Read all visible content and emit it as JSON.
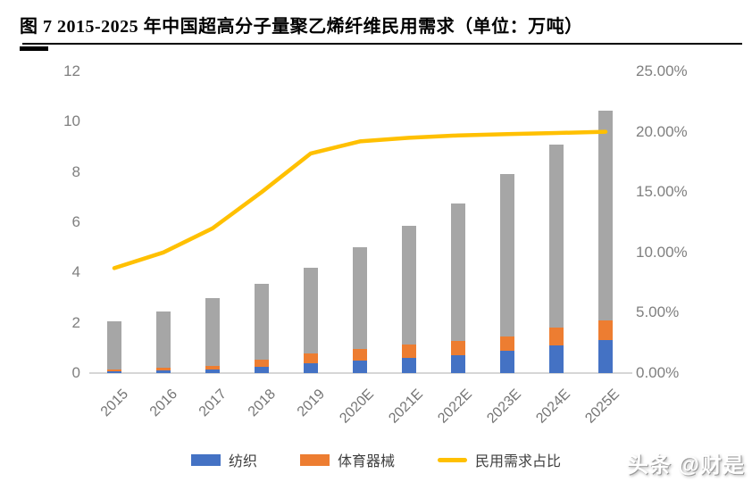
{
  "figure": {
    "title": "图 7 2015-2025 年中国超高分子量聚乙烯纤维民用需求（单位：万吨）",
    "watermark": "头条 @财是"
  },
  "colors": {
    "textile_blue": "#4472C4",
    "sports_orange": "#ED7D31",
    "other_gray": "#A6A6A6",
    "demand_line_yellow": "#FFC000",
    "axis_text_gray": "#7f7f7f",
    "title_black": "#000000"
  },
  "chart_data": {
    "type": "bar",
    "subtype": "stacked-bars-with-line-combo",
    "title": "图 7 2015-2025 年中国超高分子量聚乙烯纤维民用需求（单位：万吨）",
    "categories": [
      "2015",
      "2016",
      "2017",
      "2018",
      "2019",
      "2020E",
      "2021E",
      "2022E",
      "2023E",
      "2024E",
      "2025E"
    ],
    "series": [
      {
        "name": "纺织",
        "type": "bar",
        "axis": "left",
        "color": "#4472C4",
        "values": [
          0.06,
          0.1,
          0.15,
          0.25,
          0.4,
          0.5,
          0.6,
          0.7,
          0.9,
          1.1,
          1.3
        ]
      },
      {
        "name": "体育器械",
        "type": "bar",
        "axis": "left",
        "color": "#ED7D31",
        "values": [
          0.07,
          0.1,
          0.12,
          0.3,
          0.38,
          0.45,
          0.52,
          0.57,
          0.55,
          0.7,
          0.78
        ]
      },
      {
        "name": "",
        "legend_visible": false,
        "type": "bar",
        "axis": "left",
        "color": "#A6A6A6",
        "values": [
          1.92,
          2.25,
          2.73,
          3.0,
          3.42,
          4.05,
          4.73,
          5.48,
          6.45,
          7.3,
          8.37
        ]
      },
      {
        "name": "民用需求占比",
        "type": "line",
        "axis": "right",
        "color": "#FFC000",
        "values": [
          8.7,
          10.0,
          12.0,
          15.0,
          18.2,
          19.2,
          19.5,
          19.7,
          19.8,
          19.9,
          20.0
        ]
      }
    ],
    "stacked_totals": [
      2.05,
      2.45,
      3.0,
      3.55,
      4.2,
      5.0,
      5.85,
      6.75,
      7.9,
      9.1,
      10.45
    ],
    "left_axis": {
      "range": [
        0,
        12
      ],
      "ticks": [
        "0",
        "2",
        "4",
        "6",
        "8",
        "10",
        "12"
      ]
    },
    "right_axis": {
      "range": [
        0,
        25
      ],
      "ticks": [
        "0.00%",
        "5.00%",
        "10.00%",
        "15.00%",
        "20.00%",
        "25.00%"
      ]
    },
    "grid": false,
    "legend_position": "bottom",
    "legend": [
      {
        "label": "纺织",
        "marker": "rect",
        "color": "#4472C4"
      },
      {
        "label": "体育器械",
        "marker": "rect",
        "color": "#ED7D31"
      },
      {
        "label": "民用需求占比",
        "marker": "line",
        "color": "#FFC000"
      }
    ]
  }
}
